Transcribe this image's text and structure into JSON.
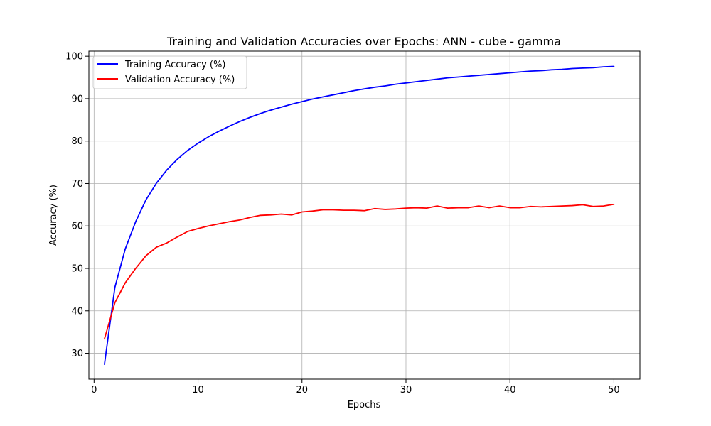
{
  "chart_data": {
    "type": "line",
    "title": "Training and Validation Accuracies over Epochs: ANN - cube - gamma",
    "xlabel": "Epochs",
    "ylabel": "Accuracy (%)",
    "xlim": [
      -0.5,
      52.5
    ],
    "ylim": [
      23.9,
      101.2
    ],
    "xticks": [
      0,
      10,
      20,
      30,
      40,
      50
    ],
    "yticks": [
      30,
      40,
      50,
      60,
      70,
      80,
      90,
      100
    ],
    "grid": true,
    "legend_position": "upper left",
    "x": [
      1,
      2,
      3,
      4,
      5,
      6,
      7,
      8,
      9,
      10,
      11,
      12,
      13,
      14,
      15,
      16,
      17,
      18,
      19,
      20,
      21,
      22,
      23,
      24,
      25,
      26,
      27,
      28,
      29,
      30,
      31,
      32,
      33,
      34,
      35,
      36,
      37,
      38,
      39,
      40,
      41,
      42,
      43,
      44,
      45,
      46,
      47,
      48,
      49,
      50
    ],
    "series": [
      {
        "name": "Training Accuracy (%)",
        "color": "#0000ff",
        "values": [
          27.4,
          45.5,
          54.6,
          61.0,
          66.2,
          70.1,
          73.2,
          75.7,
          77.8,
          79.5,
          81.0,
          82.3,
          83.5,
          84.6,
          85.6,
          86.5,
          87.3,
          88.0,
          88.7,
          89.3,
          89.9,
          90.4,
          90.9,
          91.4,
          91.9,
          92.3,
          92.7,
          93.0,
          93.4,
          93.7,
          94.0,
          94.3,
          94.6,
          94.9,
          95.1,
          95.3,
          95.5,
          95.7,
          95.9,
          96.1,
          96.3,
          96.5,
          96.6,
          96.8,
          96.9,
          97.1,
          97.2,
          97.3,
          97.5,
          97.6
        ]
      },
      {
        "name": "Validation Accuracy (%)",
        "color": "#ff0000",
        "values": [
          33.4,
          41.9,
          46.6,
          50.0,
          53.0,
          55.0,
          56.0,
          57.4,
          58.7,
          59.4,
          60.0,
          60.5,
          61.0,
          61.4,
          62.0,
          62.5,
          62.6,
          62.8,
          62.6,
          63.3,
          63.5,
          63.8,
          63.8,
          63.7,
          63.7,
          63.6,
          64.1,
          63.9,
          64.0,
          64.2,
          64.3,
          64.2,
          64.7,
          64.2,
          64.3,
          64.3,
          64.7,
          64.3,
          64.7,
          64.3,
          64.3,
          64.6,
          64.5,
          64.6,
          64.7,
          64.8,
          65.0,
          64.6,
          64.7,
          65.1
        ]
      }
    ]
  }
}
